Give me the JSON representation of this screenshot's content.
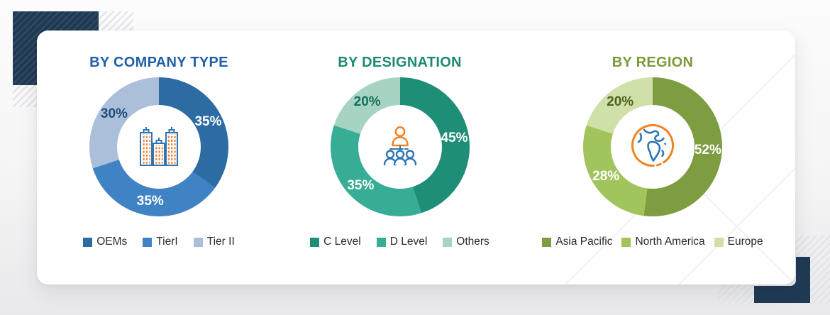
{
  "chart_data": [
    {
      "type": "pie",
      "title": "BY COMPANY TYPE",
      "title_color": "#1F5FA8",
      "unit": "%",
      "categories": [
        "OEMs",
        "TierI",
        "Tier II"
      ],
      "values": [
        35,
        35,
        30
      ],
      "colors": [
        "#2D6CA2",
        "#3F83C5",
        "#ABBFDB"
      ],
      "label_colors": [
        "#FFFFFF",
        "#FFFFFF",
        "#1F4E79"
      ],
      "center_icon": "buildings-icon",
      "legend_position": "bottom",
      "donut_hole_ratio": 0.6
    },
    {
      "type": "pie",
      "title": "BY DESIGNATION",
      "title_color": "#1D8A70",
      "unit": "%",
      "categories": [
        "C Level",
        "D Level",
        "Others"
      ],
      "values": [
        45,
        35,
        20
      ],
      "colors": [
        "#1F8E76",
        "#38AD96",
        "#A7D3C2"
      ],
      "label_colors": [
        "#FFFFFF",
        "#FFFFFF",
        "#14705B"
      ],
      "center_icon": "org-chart-icon",
      "legend_position": "bottom",
      "donut_hole_ratio": 0.6
    },
    {
      "type": "pie",
      "title": "BY REGION",
      "title_color": "#7A9A3A",
      "unit": "%",
      "categories": [
        "Asia Pacific",
        "North America",
        "Europe"
      ],
      "values": [
        52,
        28,
        20
      ],
      "colors": [
        "#7E9D40",
        "#A2C45C",
        "#CFE0A8"
      ],
      "label_colors": [
        "#FFFFFF",
        "#FFFFFF",
        "#50621F"
      ],
      "center_icon": "globe-icon",
      "legend_position": "bottom",
      "donut_hole_ratio": 0.6
    }
  ],
  "decor": {
    "corner_color": "#203A54",
    "hatch_color": "#E2E3E6",
    "icon_accent_orange": "#F28322",
    "icon_accent_blue": "#2E75B6"
  }
}
